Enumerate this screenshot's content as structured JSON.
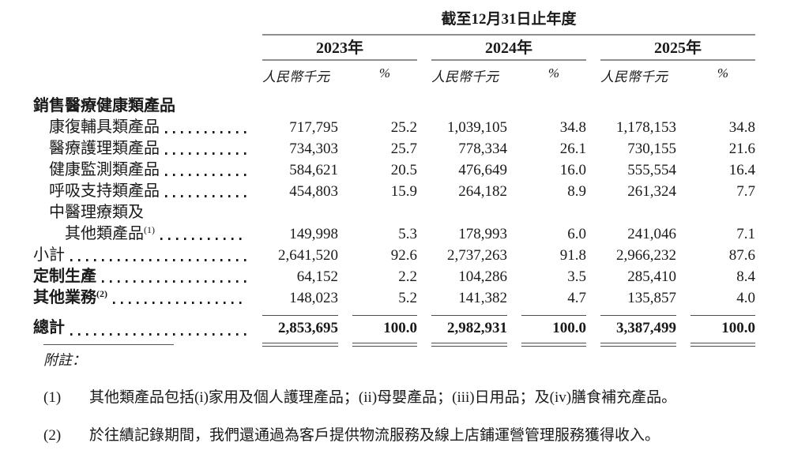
{
  "colors": {
    "text": "#1a1a1a",
    "header_rule": "#8e8e8e",
    "total_rule": "#4d4d4d"
  },
  "table": {
    "period_header": "截至12月31日止年度",
    "years": [
      "2023年",
      "2024年",
      "2025年"
    ],
    "unit_label": "人民幣千元",
    "percent_label": "%",
    "rows": [
      {
        "kind": "section",
        "indent": 0,
        "label": "銷售醫療健康類產品"
      },
      {
        "kind": "item",
        "indent": 1,
        "label": "康復輔具類產品",
        "leaders": true,
        "values": [
          "717,795",
          "25.2",
          "1,039,105",
          "34.8",
          "1,178,153",
          "34.8"
        ]
      },
      {
        "kind": "item",
        "indent": 1,
        "label": "醫療護理類產品",
        "leaders": true,
        "values": [
          "734,303",
          "25.7",
          "778,334",
          "26.1",
          "730,155",
          "21.6"
        ]
      },
      {
        "kind": "item",
        "indent": 1,
        "label": "健康監測類產品",
        "leaders": true,
        "values": [
          "584,621",
          "20.5",
          "476,649",
          "16.0",
          "555,554",
          "16.4"
        ]
      },
      {
        "kind": "item",
        "indent": 1,
        "label": "呼吸支持類產品",
        "leaders": true,
        "values": [
          "454,803",
          "15.9",
          "264,182",
          "8.9",
          "261,324",
          "7.7"
        ]
      },
      {
        "kind": "label",
        "indent": 1,
        "label": "中醫理療類及"
      },
      {
        "kind": "item",
        "indent": 2,
        "label": "其他類產品",
        "sup": "(1)",
        "leaders": true,
        "values": [
          "149,998",
          "5.3",
          "178,993",
          "6.0",
          "241,046",
          "7.1"
        ]
      },
      {
        "kind": "item",
        "indent": 0,
        "label": "小計",
        "leaders": true,
        "values": [
          "2,641,520",
          "92.6",
          "2,737,263",
          "91.8",
          "2,966,232",
          "87.6"
        ]
      },
      {
        "kind": "item",
        "indent": 0,
        "label": "定制生產",
        "bold_label": true,
        "leaders": true,
        "values": [
          "64,152",
          "2.2",
          "104,286",
          "3.5",
          "285,410",
          "8.4"
        ]
      },
      {
        "kind": "item",
        "indent": 0,
        "label": "其他業務",
        "sup": "(2)",
        "bold_label": true,
        "leaders": true,
        "values": [
          "148,023",
          "5.2",
          "141,382",
          "4.7",
          "135,857",
          "4.0"
        ]
      },
      {
        "kind": "rule"
      },
      {
        "kind": "total",
        "indent": 0,
        "label": "總計",
        "leaders": true,
        "values": [
          "2,853,695",
          "100.0",
          "2,982,931",
          "100.0",
          "3,387,499",
          "100.0"
        ]
      },
      {
        "kind": "rule2"
      }
    ]
  },
  "notes": {
    "heading": "附註：",
    "items": [
      {
        "num": "(1)",
        "text": "其他類產品包括(i)家用及個人護理產品；(ii)母嬰產品；(iii)日用品；及(iv)膳食補充產品。"
      },
      {
        "num": "(2)",
        "text": "於往績記錄期間，我們還通過為客戶提供物流服務及線上店鋪運營管理服務獲得收入。"
      }
    ]
  }
}
